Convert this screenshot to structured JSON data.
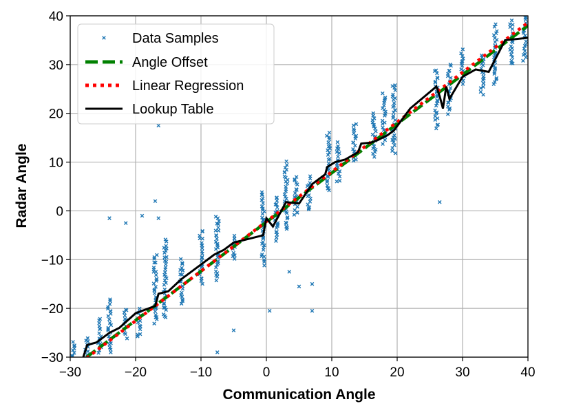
{
  "chart_data": {
    "type": "scatter",
    "xlabel": "Communication Angle",
    "ylabel": "Radar Angle",
    "xlim": [
      -30,
      40
    ],
    "ylim": [
      -30,
      40
    ],
    "xticks": [
      -30,
      -20,
      -10,
      0,
      10,
      20,
      30,
      40
    ],
    "yticks": [
      -30,
      -20,
      -10,
      0,
      10,
      20,
      30,
      40
    ],
    "xtick_labels": [
      "−30",
      "−20",
      "−10",
      "0",
      "10",
      "20",
      "30",
      "40"
    ],
    "ytick_labels": [
      "−30",
      "−20",
      "−10",
      "0",
      "10",
      "20",
      "30",
      "40"
    ],
    "grid": true,
    "legend_position": "top-left",
    "legend": [
      "Data Samples",
      "Angle Offset",
      "Linear Regression",
      "Lookup Table"
    ],
    "colors": {
      "samples": "#1f77b4",
      "offset": "#008000",
      "regression": "#ff0000",
      "lookup": "#000000"
    },
    "series": [
      {
        "name": "Data Samples",
        "kind": "scatter",
        "marker": "x",
        "clusters": [
          {
            "x": -29.5,
            "y_min": -30,
            "y_max": -27
          },
          {
            "x": -27.5,
            "y_min": -30,
            "y_max": -26
          },
          {
            "x": -25.5,
            "y_min": -29,
            "y_max": -22
          },
          {
            "x": -24,
            "y_min": -29,
            "y_max": -18
          },
          {
            "x": -21.5,
            "y_min": -26,
            "y_max": -20
          },
          {
            "x": -19.5,
            "y_min": -26,
            "y_max": -20
          },
          {
            "x": -17,
            "y_min": -23,
            "y_max": -9
          },
          {
            "x": -15.5,
            "y_min": -22,
            "y_max": -6
          },
          {
            "x": -13,
            "y_min": -19,
            "y_max": -10
          },
          {
            "x": -10,
            "y_min": -15,
            "y_max": -4
          },
          {
            "x": -7.5,
            "y_min": -14,
            "y_max": -1
          },
          {
            "x": -5,
            "y_min": -10,
            "y_max": -5
          },
          {
            "x": -0.5,
            "y_min": -11,
            "y_max": 4
          },
          {
            "x": 1.5,
            "y_min": -6,
            "y_max": 3
          },
          {
            "x": 3,
            "y_min": -4,
            "y_max": 10
          },
          {
            "x": 4.5,
            "y_min": -1,
            "y_max": 7
          },
          {
            "x": 6.5,
            "y_min": 0,
            "y_max": 7
          },
          {
            "x": 9.5,
            "y_min": 4,
            "y_max": 16
          },
          {
            "x": 11,
            "y_min": 6,
            "y_max": 14
          },
          {
            "x": 13.5,
            "y_min": 10,
            "y_max": 18
          },
          {
            "x": 16.5,
            "y_min": 11,
            "y_max": 20
          },
          {
            "x": 18,
            "y_min": 14,
            "y_max": 24
          },
          {
            "x": 19.5,
            "y_min": 12,
            "y_max": 26
          },
          {
            "x": 26,
            "y_min": 17,
            "y_max": 29
          },
          {
            "x": 28,
            "y_min": 20,
            "y_max": 30
          },
          {
            "x": 30,
            "y_min": 26,
            "y_max": 33
          },
          {
            "x": 33,
            "y_min": 24,
            "y_max": 32
          },
          {
            "x": 35,
            "y_min": 26,
            "y_max": 38
          },
          {
            "x": 37.5,
            "y_min": 30,
            "y_max": 39
          },
          {
            "x": 39.5,
            "y_min": 31,
            "y_max": 40
          }
        ],
        "outliers": [
          [
            -24,
            -1.5
          ],
          [
            -21.5,
            -2.5
          ],
          [
            -19,
            -1
          ],
          [
            -17,
            2
          ],
          [
            -16.5,
            17.5
          ],
          [
            -16.5,
            -1.5
          ],
          [
            -7.5,
            -29
          ],
          [
            -5,
            -24.5
          ],
          [
            0.5,
            -20.5
          ],
          [
            3.5,
            -12.5
          ],
          [
            5,
            -15.5
          ],
          [
            7,
            -15
          ],
          [
            7,
            -20.5
          ],
          [
            26.5,
            1.8
          ]
        ]
      },
      {
        "name": "Angle Offset",
        "kind": "line",
        "style": "dashed",
        "points": [
          [
            -27.5,
            -30
          ],
          [
            40,
            38
          ]
        ]
      },
      {
        "name": "Linear Regression",
        "kind": "line",
        "style": "dotted",
        "points": [
          [
            -27.5,
            -30.2
          ],
          [
            40,
            38.6
          ]
        ]
      },
      {
        "name": "Lookup Table",
        "kind": "line",
        "style": "solid",
        "points": [
          [
            -28,
            -30
          ],
          [
            -27.4,
            -27.5
          ],
          [
            -26,
            -27
          ],
          [
            -24,
            -25
          ],
          [
            -22.5,
            -24
          ],
          [
            -20,
            -21
          ],
          [
            -18,
            -20
          ],
          [
            -17,
            -19.5
          ],
          [
            -16.5,
            -17
          ],
          [
            -15,
            -16.5
          ],
          [
            -13,
            -14
          ],
          [
            -10,
            -11
          ],
          [
            -8,
            -9
          ],
          [
            -6.5,
            -8
          ],
          [
            -5,
            -6.5
          ],
          [
            -0.5,
            -5
          ],
          [
            0,
            -1.5
          ],
          [
            1,
            -3.2
          ],
          [
            3,
            1.8
          ],
          [
            5,
            1.5
          ],
          [
            7,
            5.5
          ],
          [
            9,
            7.5
          ],
          [
            9.3,
            9
          ],
          [
            10.5,
            10
          ],
          [
            12,
            10.5
          ],
          [
            14,
            12
          ],
          [
            14.5,
            13.8
          ],
          [
            16,
            14
          ],
          [
            17,
            14.5
          ],
          [
            18.5,
            15.5
          ],
          [
            19.5,
            16.5
          ],
          [
            22,
            21
          ],
          [
            26,
            25.5
          ],
          [
            26.5,
            23.5
          ],
          [
            27,
            21
          ],
          [
            27.5,
            25.5
          ],
          [
            28,
            23
          ],
          [
            30,
            27.5
          ],
          [
            32,
            29
          ],
          [
            34,
            28.5
          ],
          [
            36.5,
            35
          ],
          [
            40,
            35.5
          ]
        ]
      }
    ]
  }
}
